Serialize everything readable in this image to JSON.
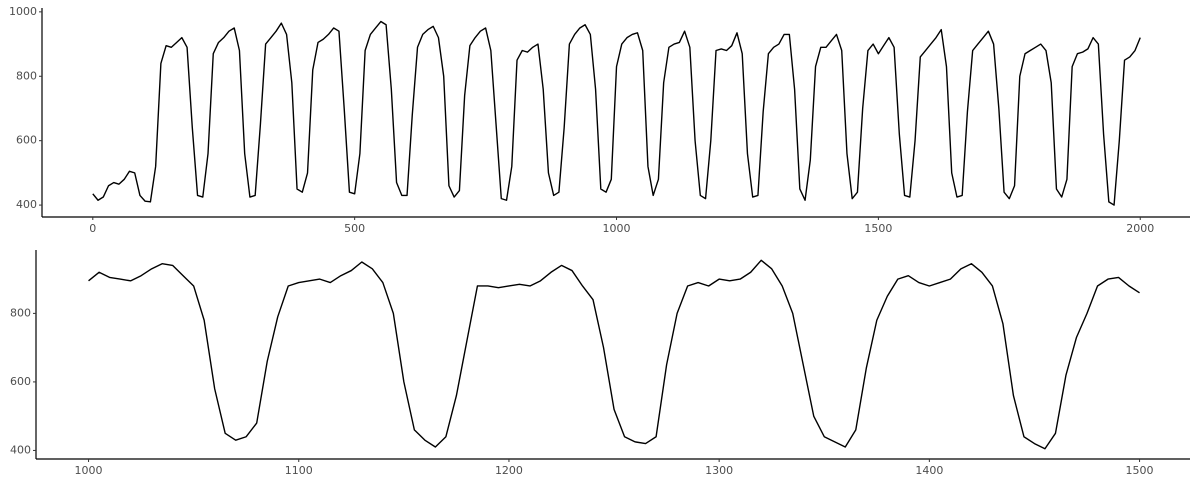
{
  "chart_data": [
    {
      "type": "line",
      "color": "#000000",
      "x": [
        0,
        10,
        20,
        30,
        40,
        50,
        60,
        70,
        80,
        90,
        100,
        110,
        120,
        130,
        140,
        150,
        160,
        170,
        180,
        190,
        200,
        210,
        220,
        230,
        240,
        250,
        260,
        270,
        280,
        290,
        300,
        310,
        320,
        330,
        340,
        350,
        360,
        370,
        380,
        390,
        400,
        410,
        420,
        430,
        440,
        450,
        460,
        470,
        480,
        490,
        500,
        510,
        520,
        530,
        540,
        550,
        560,
        570,
        580,
        590,
        600,
        610,
        620,
        630,
        640,
        650,
        660,
        670,
        680,
        690,
        700,
        710,
        720,
        730,
        740,
        750,
        760,
        770,
        780,
        790,
        800,
        810,
        820,
        830,
        840,
        850,
        860,
        870,
        880,
        890,
        900,
        910,
        920,
        930,
        940,
        950,
        960,
        970,
        980,
        990,
        1000,
        1010,
        1020,
        1030,
        1040,
        1050,
        1060,
        1070,
        1080,
        1090,
        1100,
        1110,
        1120,
        1130,
        1140,
        1150,
        1160,
        1170,
        1180,
        1190,
        1200,
        1210,
        1220,
        1230,
        1240,
        1250,
        1260,
        1270,
        1280,
        1290,
        1300,
        1310,
        1320,
        1330,
        1340,
        1350,
        1360,
        1370,
        1380,
        1390,
        1400,
        1410,
        1420,
        1430,
        1440,
        1450,
        1460,
        1470,
        1480,
        1490,
        1500,
        1510,
        1520,
        1530,
        1540,
        1550,
        1560,
        1570,
        1580,
        1590,
        1600,
        1610,
        1620,
        1630,
        1640,
        1650,
        1660,
        1670,
        1680,
        1690,
        1700,
        1710,
        1720,
        1730,
        1740,
        1750,
        1760,
        1770,
        1780,
        1790,
        1800,
        1810,
        1820,
        1830,
        1840,
        1850,
        1860,
        1870,
        1880,
        1890,
        1900,
        1910,
        1920,
        1930,
        1940,
        1950,
        1960,
        1970,
        1980,
        1990,
        2000
      ],
      "values": [
        435,
        415,
        425,
        460,
        470,
        465,
        480,
        505,
        500,
        430,
        412,
        410,
        520,
        840,
        895,
        890,
        905,
        920,
        890,
        640,
        430,
        425,
        560,
        870,
        905,
        920,
        940,
        950,
        880,
        560,
        425,
        430,
        650,
        900,
        920,
        940,
        965,
        930,
        780,
        450,
        440,
        500,
        820,
        905,
        915,
        930,
        950,
        940,
        700,
        440,
        435,
        560,
        880,
        930,
        950,
        970,
        960,
        760,
        470,
        430,
        430,
        680,
        890,
        930,
        945,
        955,
        920,
        800,
        460,
        425,
        445,
        740,
        895,
        920,
        940,
        950,
        880,
        650,
        420,
        415,
        520,
        850,
        880,
        875,
        890,
        900,
        760,
        500,
        430,
        440,
        640,
        900,
        930,
        950,
        960,
        930,
        760,
        450,
        440,
        480,
        830,
        900,
        920,
        930,
        935,
        880,
        520,
        430,
        480,
        780,
        890,
        900,
        905,
        940,
        890,
        600,
        430,
        420,
        600,
        880,
        885,
        880,
        895,
        935,
        870,
        560,
        425,
        430,
        690,
        870,
        890,
        900,
        930,
        930,
        760,
        450,
        415,
        540,
        830,
        890,
        890,
        910,
        930,
        880,
        560,
        420,
        440,
        700,
        880,
        900,
        870,
        895,
        920,
        890,
        620,
        430,
        425,
        600,
        860,
        880,
        900,
        920,
        945,
        830,
        500,
        425,
        430,
        690,
        880,
        900,
        920,
        940,
        900,
        700,
        440,
        420,
        460,
        800,
        870,
        880,
        890,
        900,
        880,
        780,
        450,
        425,
        480,
        830,
        870,
        875,
        885,
        920,
        900,
        620,
        410,
        400,
        600,
        850,
        860,
        880,
        920
      ],
      "xlim": [
        -97,
        2095
      ],
      "xticks": [
        0,
        500,
        1000,
        1500,
        2000
      ],
      "ylim": [
        363,
        1012
      ],
      "yticks": [
        400,
        600,
        800,
        1000
      ]
    },
    {
      "type": "line",
      "color": "#000000",
      "x": [
        1000,
        1005,
        1010,
        1015,
        1020,
        1025,
        1030,
        1035,
        1040,
        1045,
        1050,
        1055,
        1060,
        1065,
        1070,
        1075,
        1080,
        1085,
        1090,
        1095,
        1100,
        1105,
        1110,
        1115,
        1120,
        1125,
        1130,
        1135,
        1140,
        1145,
        1150,
        1155,
        1160,
        1165,
        1170,
        1175,
        1180,
        1185,
        1190,
        1195,
        1200,
        1205,
        1210,
        1215,
        1220,
        1225,
        1230,
        1235,
        1240,
        1245,
        1250,
        1255,
        1260,
        1265,
        1270,
        1275,
        1280,
        1285,
        1290,
        1295,
        1300,
        1305,
        1310,
        1315,
        1320,
        1325,
        1330,
        1335,
        1340,
        1345,
        1350,
        1355,
        1360,
        1365,
        1370,
        1375,
        1380,
        1385,
        1390,
        1395,
        1400,
        1405,
        1410,
        1415,
        1420,
        1425,
        1430,
        1435,
        1440,
        1445,
        1450,
        1455,
        1460,
        1465,
        1470,
        1475,
        1480,
        1485,
        1490,
        1495,
        1500
      ],
      "values": [
        895,
        920,
        905,
        900,
        895,
        910,
        930,
        945,
        940,
        910,
        880,
        780,
        580,
        450,
        430,
        440,
        480,
        660,
        790,
        880,
        890,
        895,
        900,
        890,
        910,
        925,
        950,
        930,
        890,
        800,
        600,
        460,
        430,
        410,
        440,
        560,
        720,
        880,
        880,
        875,
        880,
        885,
        880,
        895,
        920,
        940,
        925,
        880,
        840,
        700,
        520,
        440,
        425,
        420,
        440,
        650,
        800,
        880,
        890,
        880,
        900,
        895,
        900,
        920,
        955,
        930,
        880,
        800,
        650,
        500,
        440,
        425,
        410,
        460,
        640,
        780,
        850,
        900,
        910,
        890,
        880,
        890,
        900,
        930,
        945,
        920,
        880,
        770,
        560,
        440,
        420,
        405,
        450,
        620,
        730,
        800,
        880,
        900,
        905,
        880,
        860
      ],
      "xlim": [
        975,
        1524
      ],
      "xticks": [
        1000,
        1100,
        1200,
        1300,
        1400,
        1500
      ],
      "ylim": [
        375,
        985
      ],
      "yticks": [
        400,
        600,
        800
      ]
    }
  ]
}
